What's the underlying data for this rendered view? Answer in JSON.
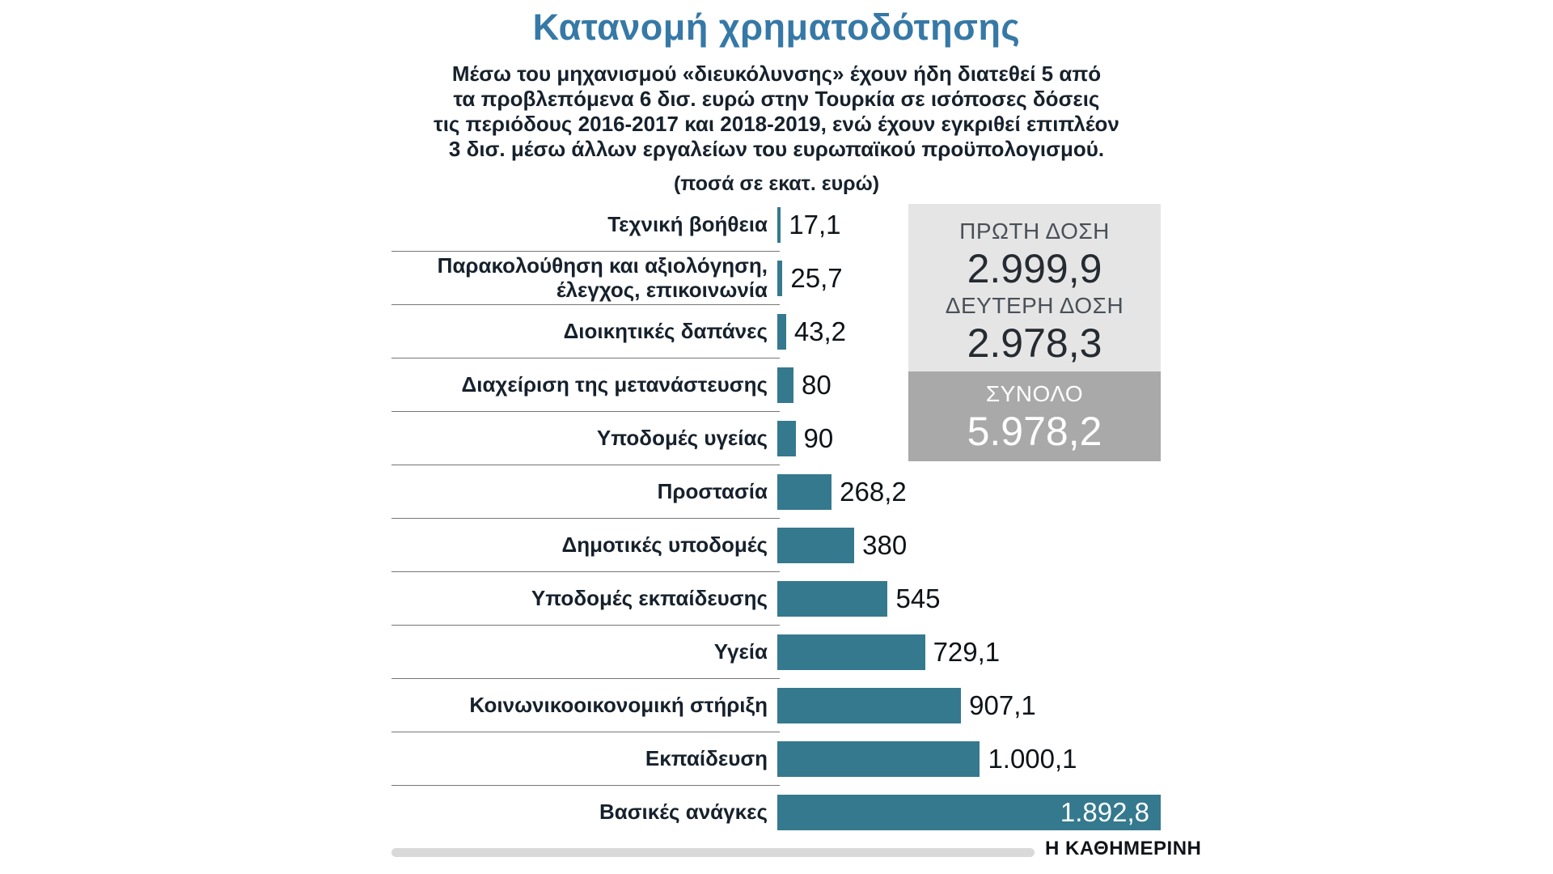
{
  "intro": {
    "text": "Μέσω του μηχανισμού «διευκόλυνσης» έχουν ήδη διατεθεί 5 από\nτα προβλεπόμενα 6 δισ. ευρώ στην Τουρκία σε ισόποσες δόσεις\nτις περιόδους 2016-2017 και 2018-2019, ενώ έχουν εγκριθεί επιπλέον\n3 δισ. μέσω άλλων εργαλείων του ευρωπαϊκού προϋπολογισμού.",
    "unit_note": "(ποσά σε εκατ. ευρώ)"
  },
  "tranches": {
    "first": {
      "label": "ΠΡΩΤΗ ΔΟΣΗ",
      "value": "2.999,9"
    },
    "second": {
      "label": "ΔΕΥΤΕΡΗ ΔΟΣΗ",
      "value": "2.978,3"
    },
    "total": {
      "label": "ΣΥΝΟΛΟ",
      "value": "5.978,2"
    }
  },
  "source": "Η ΚΑΘΗΜΕΡΙΝΗ",
  "colors": {
    "title": "#3679a6",
    "bar": "#35798e",
    "text_dark": "#16212c",
    "box_light": "#e5e5e5",
    "box_dark": "#a9a9aa",
    "separator": "#767676",
    "footer_bar": "#d9d9d9"
  },
  "chart_data": {
    "type": "bar",
    "orientation": "horizontal",
    "title": "Κατανομή χρηματοδότησης",
    "unit": "εκατ. ευρώ",
    "categories": [
      "Τεχνική βοήθεια",
      "Παρακολούθηση και αξιολόγηση, έλεγχος, επικοινωνία",
      "Διοικητικές δαπάνες",
      "Διαχείριση της μετανάστευσης",
      "Υποδομές υγείας",
      "Προστασία",
      "Δημοτικές υποδομές",
      "Υποδομές εκπαίδευσης",
      "Υγεία",
      "Κοινωνικοοικονομική στήριξη",
      "Εκπαίδευση",
      "Βασικές ανάγκες"
    ],
    "values": [
      17.1,
      25.7,
      43.2,
      80,
      90,
      268.2,
      380,
      545,
      729.1,
      907.1,
      1000.1,
      1892.8
    ],
    "value_labels": [
      "17,1",
      "25,7",
      "43,2",
      "80",
      "90",
      "268,2",
      "380",
      "545",
      "729,1",
      "907,1",
      "1.000,1",
      "1.892,8"
    ],
    "xlim": [
      0,
      1900
    ],
    "grid": false,
    "legend": false,
    "bar_color": "#35798e"
  }
}
